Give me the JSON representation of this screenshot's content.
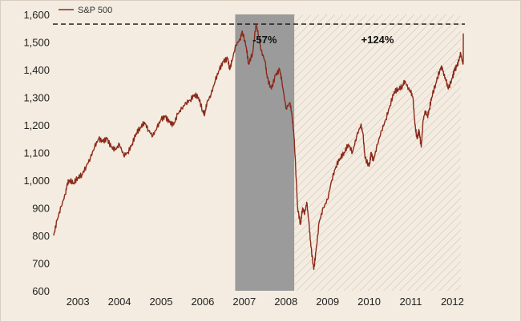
{
  "chart_data": {
    "type": "line",
    "title": "",
    "xlabel": "",
    "ylabel": "",
    "ylim": [
      600,
      1600
    ],
    "xlim": [
      2002.9,
      2012.8
    ],
    "y_ticks": [
      "600",
      "700",
      "800",
      "900",
      "1,000",
      "1,100",
      "1,200",
      "1,300",
      "1,400",
      "1,500",
      "1,600"
    ],
    "x_ticks": [
      "2003",
      "2004",
      "2005",
      "2006",
      "2007",
      "2008",
      "2009",
      "2010",
      "2011",
      "2012"
    ],
    "legend": {
      "entries": [
        "S&P 500"
      ],
      "placement": "top-left"
    },
    "grid": false,
    "reference_line": {
      "value": 1565,
      "style": "dashed"
    },
    "shaded_regions": [
      {
        "from": 2007.28,
        "to": 2008.7,
        "style": "solid-gray",
        "color": "#9b9b9b",
        "label": "-57%"
      },
      {
        "from": 2008.7,
        "to": 2012.7,
        "style": "hatched",
        "color": "#cfc6bb",
        "label": "+124%"
      }
    ],
    "series": [
      {
        "name": "S&P 500",
        "color": "#8b2a1a",
        "points": [
          [
            2002.92,
            800
          ],
          [
            2003.0,
            855
          ],
          [
            2003.1,
            905
          ],
          [
            2003.2,
            950
          ],
          [
            2003.25,
            990
          ],
          [
            2003.3,
            1000
          ],
          [
            2003.4,
            990
          ],
          [
            2003.5,
            1010
          ],
          [
            2003.6,
            1020
          ],
          [
            2003.7,
            1050
          ],
          [
            2003.8,
            1080
          ],
          [
            2003.9,
            1120
          ],
          [
            2004.0,
            1150
          ],
          [
            2004.1,
            1140
          ],
          [
            2004.2,
            1150
          ],
          [
            2004.3,
            1120
          ],
          [
            2004.4,
            1110
          ],
          [
            2004.5,
            1130
          ],
          [
            2004.6,
            1090
          ],
          [
            2004.7,
            1100
          ],
          [
            2004.8,
            1130
          ],
          [
            2004.9,
            1170
          ],
          [
            2005.0,
            1190
          ],
          [
            2005.1,
            1210
          ],
          [
            2005.2,
            1180
          ],
          [
            2005.3,
            1160
          ],
          [
            2005.4,
            1190
          ],
          [
            2005.5,
            1220
          ],
          [
            2005.6,
            1230
          ],
          [
            2005.7,
            1210
          ],
          [
            2005.8,
            1200
          ],
          [
            2005.9,
            1240
          ],
          [
            2006.0,
            1260
          ],
          [
            2006.1,
            1280
          ],
          [
            2006.2,
            1290
          ],
          [
            2006.3,
            1310
          ],
          [
            2006.4,
            1300
          ],
          [
            2006.5,
            1250
          ],
          [
            2006.55,
            1240
          ],
          [
            2006.6,
            1280
          ],
          [
            2006.7,
            1310
          ],
          [
            2006.8,
            1360
          ],
          [
            2006.9,
            1400
          ],
          [
            2007.0,
            1430
          ],
          [
            2007.1,
            1440
          ],
          [
            2007.15,
            1400
          ],
          [
            2007.2,
            1430
          ],
          [
            2007.3,
            1490
          ],
          [
            2007.4,
            1510
          ],
          [
            2007.45,
            1540
          ],
          [
            2007.55,
            1480
          ],
          [
            2007.6,
            1420
          ],
          [
            2007.7,
            1460
          ],
          [
            2007.78,
            1565
          ],
          [
            2007.85,
            1520
          ],
          [
            2007.9,
            1470
          ],
          [
            2008.0,
            1430
          ],
          [
            2008.05,
            1370
          ],
          [
            2008.15,
            1330
          ],
          [
            2008.25,
            1380
          ],
          [
            2008.35,
            1400
          ],
          [
            2008.4,
            1360
          ],
          [
            2008.5,
            1260
          ],
          [
            2008.6,
            1280
          ],
          [
            2008.65,
            1230
          ],
          [
            2008.7,
            1150
          ],
          [
            2008.78,
            900
          ],
          [
            2008.85,
            840
          ],
          [
            2008.9,
            900
          ],
          [
            2008.95,
            880
          ],
          [
            2009.0,
            920
          ],
          [
            2009.05,
            850
          ],
          [
            2009.1,
            760
          ],
          [
            2009.17,
            677
          ],
          [
            2009.22,
            740
          ],
          [
            2009.3,
            850
          ],
          [
            2009.4,
            900
          ],
          [
            2009.5,
            930
          ],
          [
            2009.6,
            1000
          ],
          [
            2009.7,
            1050
          ],
          [
            2009.8,
            1080
          ],
          [
            2009.9,
            1100
          ],
          [
            2010.0,
            1130
          ],
          [
            2010.1,
            1100
          ],
          [
            2010.2,
            1160
          ],
          [
            2010.3,
            1200
          ],
          [
            2010.35,
            1170
          ],
          [
            2010.4,
            1080
          ],
          [
            2010.5,
            1050
          ],
          [
            2010.55,
            1100
          ],
          [
            2010.6,
            1070
          ],
          [
            2010.7,
            1130
          ],
          [
            2010.8,
            1180
          ],
          [
            2010.9,
            1220
          ],
          [
            2011.0,
            1270
          ],
          [
            2011.1,
            1320
          ],
          [
            2011.2,
            1330
          ],
          [
            2011.3,
            1340
          ],
          [
            2011.35,
            1360
          ],
          [
            2011.45,
            1330
          ],
          [
            2011.5,
            1320
          ],
          [
            2011.55,
            1300
          ],
          [
            2011.6,
            1200
          ],
          [
            2011.65,
            1150
          ],
          [
            2011.7,
            1180
          ],
          [
            2011.75,
            1120
          ],
          [
            2011.8,
            1220
          ],
          [
            2011.85,
            1250
          ],
          [
            2011.9,
            1230
          ],
          [
            2011.95,
            1260
          ],
          [
            2012.0,
            1300
          ],
          [
            2012.1,
            1350
          ],
          [
            2012.2,
            1400
          ],
          [
            2012.25,
            1410
          ],
          [
            2012.3,
            1380
          ],
          [
            2012.35,
            1360
          ],
          [
            2012.4,
            1330
          ],
          [
            2012.5,
            1370
          ],
          [
            2012.55,
            1400
          ],
          [
            2012.6,
            1410
          ],
          [
            2012.65,
            1430
          ],
          [
            2012.7,
            1460
          ],
          [
            2012.75,
            1420
          ],
          [
            2012.8,
            1470
          ],
          [
            2012.85,
            1500
          ],
          [
            2012.9,
            1460
          ],
          [
            2012.95,
            1440
          ],
          [
            2013.0,
            1480
          ],
          [
            2013.05,
            1510
          ],
          [
            2013.1,
            1525
          ],
          [
            2013.15,
            1510
          ]
        ]
      }
    ]
  }
}
